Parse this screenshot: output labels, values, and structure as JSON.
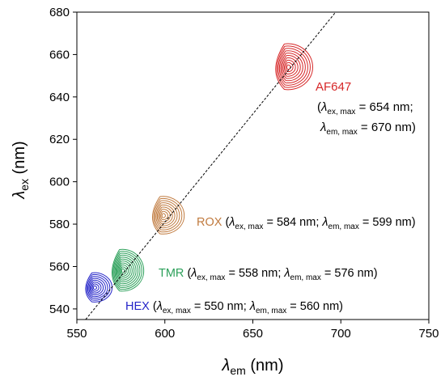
{
  "chart_data": {
    "type": "contour",
    "xaxis": {
      "symbol": "λ",
      "subscript": "em",
      "unit": " (nm)",
      "range": [
        550,
        750
      ],
      "ticks": [
        550,
        600,
        650,
        700,
        750
      ]
    },
    "yaxis": {
      "symbol": "λ",
      "subscript": "ex",
      "unit": " (nm)",
      "range": [
        535,
        680
      ],
      "ticks": [
        540,
        560,
        580,
        600,
        620,
        640,
        660,
        680
      ]
    },
    "diagonal": {
      "style": "dashed",
      "x": [
        555,
        700
      ],
      "y": [
        535,
        683
      ]
    },
    "grid": false,
    "legend": "none",
    "series": [
      {
        "name": "AF647",
        "color": "#d62728",
        "ex_max": 654,
        "em_max": 670,
        "label": {
          "name": "AF647",
          "line1": {
            "pre": "(",
            "sym": "λ",
            "sub": "ex, max",
            "post": " = 654 nm;"
          },
          "line2": {
            "sym": "λ",
            "sub": "em, max",
            "post": " = 670 nm)"
          }
        }
      },
      {
        "name": "ROX",
        "color": "#c07a3e",
        "ex_max": 584,
        "em_max": 599,
        "label": {
          "name": "ROX",
          "parts": [
            {
              "pre": " (",
              "sym": "λ",
              "sub": "ex, max",
              "post": " = 584 nm; "
            },
            {
              "sym": "λ",
              "sub": "em, max",
              "post": " = 599 nm)"
            }
          ]
        }
      },
      {
        "name": "TMR",
        "color": "#2ca05a",
        "ex_max": 558,
        "em_max": 576,
        "label": {
          "name": "TMR",
          "parts": [
            {
              "pre": " (",
              "sym": "λ",
              "sub": "ex, max",
              "post": " = 558 nm; "
            },
            {
              "sym": "λ",
              "sub": "em, max",
              "post": " = 576 nm)"
            }
          ]
        }
      },
      {
        "name": "HEX",
        "color": "#2323c8",
        "ex_max": 550,
        "em_max": 560,
        "label": {
          "name": "HEX",
          "parts": [
            {
              "pre": " (",
              "sym": "λ",
              "sub": "ex, max",
              "post": " = 550 nm; "
            },
            {
              "sym": "λ",
              "sub": "em, max",
              "post": " = 560 nm)"
            }
          ]
        }
      }
    ]
  }
}
